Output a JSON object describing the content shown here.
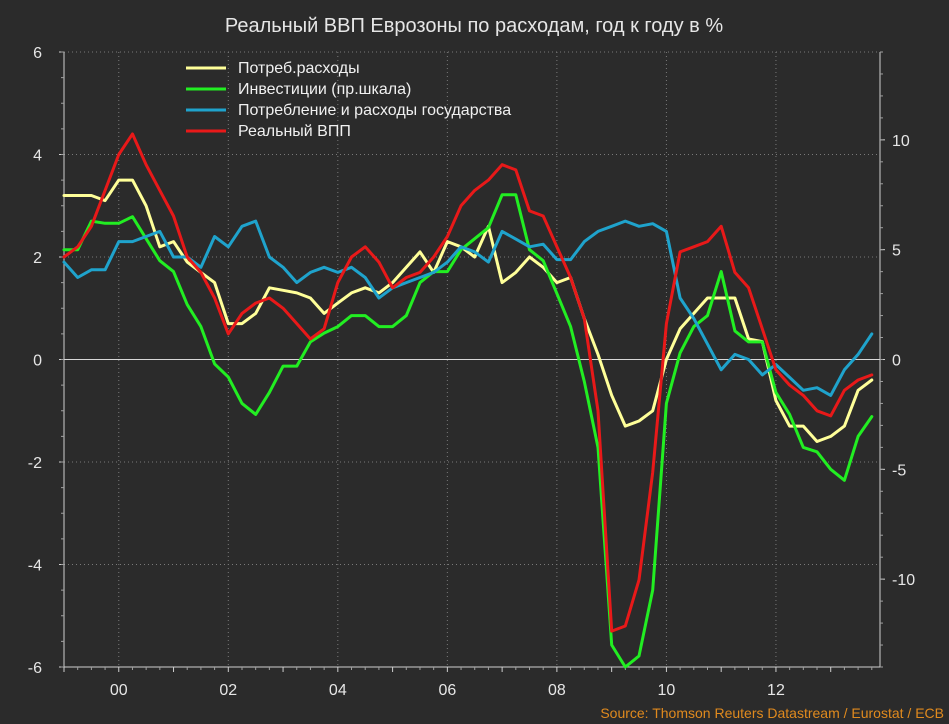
{
  "chart_data": {
    "type": "line",
    "title": "Реальный ВВП Еврозоны по расходам, год к году в %",
    "source": "Source: Thomson Reuters Datastream / Eurostat / ECB",
    "xlabel": "",
    "ylabel": "",
    "x_tick_labels": [
      "00",
      "02",
      "04",
      "06",
      "08",
      "10",
      "12"
    ],
    "x_tick_values": [
      2000,
      2002,
      2004,
      2006,
      2008,
      2010,
      2012
    ],
    "xlim": [
      1999,
      2013.9
    ],
    "ylim_left": [
      -6,
      6
    ],
    "ylim_right": [
      -14,
      14
    ],
    "y_left_ticks": [
      -6,
      -4,
      -2,
      0,
      2,
      4,
      6
    ],
    "y_left_tick_labels": [
      "-6",
      "-4",
      "-2",
      "0",
      "2",
      "4",
      "6"
    ],
    "y_right_ticks": [
      -10,
      -5,
      0,
      5,
      10
    ],
    "y_right_tick_labels": [
      "-10",
      "-5",
      "0",
      "5",
      "10"
    ],
    "legend_position": "top-left",
    "grid": true,
    "zero_line": true,
    "series": [
      {
        "name": "Потреб.расходы",
        "color": "#ffff99",
        "axis": "left",
        "points": [
          [
            1999.0,
            3.2
          ],
          [
            1999.25,
            3.2
          ],
          [
            1999.5,
            3.2
          ],
          [
            1999.75,
            3.1
          ],
          [
            2000.0,
            3.5
          ],
          [
            2000.25,
            3.5
          ],
          [
            2000.5,
            3.0
          ],
          [
            2000.75,
            2.2
          ],
          [
            2001.0,
            2.3
          ],
          [
            2001.25,
            1.9
          ],
          [
            2001.5,
            1.7
          ],
          [
            2001.75,
            1.5
          ],
          [
            2002.0,
            0.7
          ],
          [
            2002.25,
            0.7
          ],
          [
            2002.5,
            0.9
          ],
          [
            2002.75,
            1.4
          ],
          [
            2003.0,
            1.35
          ],
          [
            2003.25,
            1.3
          ],
          [
            2003.5,
            1.2
          ],
          [
            2003.75,
            0.9
          ],
          [
            2004.0,
            1.1
          ],
          [
            2004.25,
            1.3
          ],
          [
            2004.5,
            1.4
          ],
          [
            2004.75,
            1.3
          ],
          [
            2005.0,
            1.5
          ],
          [
            2005.25,
            1.8
          ],
          [
            2005.5,
            2.1
          ],
          [
            2005.75,
            1.7
          ],
          [
            2006.0,
            2.3
          ],
          [
            2006.25,
            2.2
          ],
          [
            2006.5,
            2.0
          ],
          [
            2006.75,
            2.6
          ],
          [
            2007.0,
            1.5
          ],
          [
            2007.25,
            1.7
          ],
          [
            2007.5,
            2.0
          ],
          [
            2007.75,
            1.8
          ],
          [
            2008.0,
            1.5
          ],
          [
            2008.25,
            1.6
          ],
          [
            2008.5,
            0.8
          ],
          [
            2008.75,
            0.1
          ],
          [
            2009.0,
            -0.7
          ],
          [
            2009.25,
            -1.3
          ],
          [
            2009.5,
            -1.2
          ],
          [
            2009.75,
            -1.0
          ],
          [
            2010.0,
            0.0
          ],
          [
            2010.25,
            0.6
          ],
          [
            2010.5,
            0.9
          ],
          [
            2010.75,
            1.2
          ],
          [
            2011.0,
            1.2
          ],
          [
            2011.25,
            1.2
          ],
          [
            2011.5,
            0.4
          ],
          [
            2011.75,
            0.35
          ],
          [
            2012.0,
            -0.8
          ],
          [
            2012.25,
            -1.3
          ],
          [
            2012.5,
            -1.3
          ],
          [
            2012.75,
            -1.6
          ],
          [
            2013.0,
            -1.5
          ],
          [
            2013.25,
            -1.3
          ],
          [
            2013.5,
            -0.6
          ],
          [
            2013.75,
            -0.4
          ]
        ]
      },
      {
        "name": "Инвестиции (пр.шкала)",
        "color": "#22ee22",
        "axis": "right",
        "points": [
          [
            1999.0,
            5.0
          ],
          [
            1999.25,
            5.0
          ],
          [
            1999.5,
            6.3
          ],
          [
            1999.75,
            6.2
          ],
          [
            2000.0,
            6.2
          ],
          [
            2000.25,
            6.5
          ],
          [
            2000.5,
            5.5
          ],
          [
            2000.75,
            4.5
          ],
          [
            2001.0,
            4.0
          ],
          [
            2001.25,
            2.5
          ],
          [
            2001.5,
            1.5
          ],
          [
            2001.75,
            -0.2
          ],
          [
            2002.0,
            -0.8
          ],
          [
            2002.25,
            -2.0
          ],
          [
            2002.5,
            -2.5
          ],
          [
            2002.75,
            -1.5
          ],
          [
            2003.0,
            -0.3
          ],
          [
            2003.25,
            -0.3
          ],
          [
            2003.5,
            0.8
          ],
          [
            2003.75,
            1.2
          ],
          [
            2004.0,
            1.5
          ],
          [
            2004.25,
            2.0
          ],
          [
            2004.5,
            2.0
          ],
          [
            2004.75,
            1.5
          ],
          [
            2005.0,
            1.5
          ],
          [
            2005.25,
            2.0
          ],
          [
            2005.5,
            3.5
          ],
          [
            2005.75,
            4.0
          ],
          [
            2006.0,
            4.0
          ],
          [
            2006.25,
            5.0
          ],
          [
            2006.5,
            5.5
          ],
          [
            2006.75,
            6.0
          ],
          [
            2007.0,
            7.5
          ],
          [
            2007.25,
            7.5
          ],
          [
            2007.5,
            5.0
          ],
          [
            2007.75,
            4.5
          ],
          [
            2008.0,
            3.0
          ],
          [
            2008.25,
            1.5
          ],
          [
            2008.5,
            -1.0
          ],
          [
            2008.75,
            -4.0
          ],
          [
            2009.0,
            -13.0
          ],
          [
            2009.25,
            -14.0
          ],
          [
            2009.5,
            -13.5
          ],
          [
            2009.75,
            -10.5
          ],
          [
            2010.0,
            -2.0
          ],
          [
            2010.25,
            0.3
          ],
          [
            2010.5,
            1.5
          ],
          [
            2010.75,
            2.0
          ],
          [
            2011.0,
            4.0
          ],
          [
            2011.25,
            1.3
          ],
          [
            2011.5,
            0.8
          ],
          [
            2011.75,
            0.8
          ],
          [
            2012.0,
            -1.5
          ],
          [
            2012.25,
            -2.5
          ],
          [
            2012.5,
            -4.0
          ],
          [
            2012.75,
            -4.2
          ],
          [
            2013.0,
            -5.0
          ],
          [
            2013.25,
            -5.5
          ],
          [
            2013.5,
            -3.5
          ],
          [
            2013.75,
            -2.6
          ]
        ]
      },
      {
        "name": "Потребление и расходы государства",
        "color": "#1fa3cc",
        "axis": "left",
        "points": [
          [
            1999.0,
            1.9
          ],
          [
            1999.25,
            1.6
          ],
          [
            1999.5,
            1.75
          ],
          [
            1999.75,
            1.75
          ],
          [
            2000.0,
            2.3
          ],
          [
            2000.25,
            2.3
          ],
          [
            2000.5,
            2.4
          ],
          [
            2000.75,
            2.5
          ],
          [
            2001.0,
            2.0
          ],
          [
            2001.25,
            2.0
          ],
          [
            2001.5,
            1.8
          ],
          [
            2001.75,
            2.4
          ],
          [
            2002.0,
            2.2
          ],
          [
            2002.25,
            2.6
          ],
          [
            2002.5,
            2.7
          ],
          [
            2002.75,
            2.0
          ],
          [
            2003.0,
            1.8
          ],
          [
            2003.25,
            1.5
          ],
          [
            2003.5,
            1.7
          ],
          [
            2003.75,
            1.8
          ],
          [
            2004.0,
            1.7
          ],
          [
            2004.25,
            1.8
          ],
          [
            2004.5,
            1.6
          ],
          [
            2004.75,
            1.2
          ],
          [
            2005.0,
            1.4
          ],
          [
            2005.25,
            1.5
          ],
          [
            2005.5,
            1.6
          ],
          [
            2005.75,
            1.7
          ],
          [
            2006.0,
            1.9
          ],
          [
            2006.25,
            2.2
          ],
          [
            2006.5,
            2.1
          ],
          [
            2006.75,
            1.9
          ],
          [
            2007.0,
            2.5
          ],
          [
            2007.25,
            2.35
          ],
          [
            2007.5,
            2.2
          ],
          [
            2007.75,
            2.25
          ],
          [
            2008.0,
            1.95
          ],
          [
            2008.25,
            1.95
          ],
          [
            2008.5,
            2.3
          ],
          [
            2008.75,
            2.5
          ],
          [
            2009.0,
            2.6
          ],
          [
            2009.25,
            2.7
          ],
          [
            2009.5,
            2.6
          ],
          [
            2009.75,
            2.65
          ],
          [
            2010.0,
            2.5
          ],
          [
            2010.25,
            1.2
          ],
          [
            2010.5,
            0.8
          ],
          [
            2010.75,
            0.3
          ],
          [
            2011.0,
            -0.2
          ],
          [
            2011.25,
            0.1
          ],
          [
            2011.5,
            0.0
          ],
          [
            2011.75,
            -0.3
          ],
          [
            2012.0,
            -0.1
          ],
          [
            2012.25,
            -0.35
          ],
          [
            2012.5,
            -0.6
          ],
          [
            2012.75,
            -0.55
          ],
          [
            2013.0,
            -0.7
          ],
          [
            2013.25,
            -0.2
          ],
          [
            2013.5,
            0.1
          ],
          [
            2013.75,
            0.5
          ]
        ]
      },
      {
        "name": "Реальный ВПП",
        "color": "#e81919",
        "axis": "left",
        "points": [
          [
            1999.0,
            2.0
          ],
          [
            1999.25,
            2.2
          ],
          [
            1999.5,
            2.6
          ],
          [
            1999.75,
            3.3
          ],
          [
            2000.0,
            4.0
          ],
          [
            2000.25,
            4.4
          ],
          [
            2000.5,
            3.8
          ],
          [
            2000.75,
            3.3
          ],
          [
            2001.0,
            2.8
          ],
          [
            2001.25,
            2.0
          ],
          [
            2001.5,
            1.7
          ],
          [
            2001.75,
            1.2
          ],
          [
            2002.0,
            0.5
          ],
          [
            2002.25,
            0.9
          ],
          [
            2002.5,
            1.1
          ],
          [
            2002.75,
            1.2
          ],
          [
            2003.0,
            1.0
          ],
          [
            2003.25,
            0.7
          ],
          [
            2003.5,
            0.4
          ],
          [
            2003.75,
            0.6
          ],
          [
            2004.0,
            1.5
          ],
          [
            2004.25,
            2.0
          ],
          [
            2004.5,
            2.2
          ],
          [
            2004.75,
            1.9
          ],
          [
            2005.0,
            1.4
          ],
          [
            2005.25,
            1.6
          ],
          [
            2005.5,
            1.7
          ],
          [
            2005.75,
            2.0
          ],
          [
            2006.0,
            2.4
          ],
          [
            2006.25,
            3.0
          ],
          [
            2006.5,
            3.3
          ],
          [
            2006.75,
            3.5
          ],
          [
            2007.0,
            3.8
          ],
          [
            2007.25,
            3.7
          ],
          [
            2007.5,
            2.9
          ],
          [
            2007.75,
            2.8
          ],
          [
            2008.0,
            2.2
          ],
          [
            2008.25,
            1.6
          ],
          [
            2008.5,
            0.8
          ],
          [
            2008.75,
            -1.0
          ],
          [
            2009.0,
            -5.3
          ],
          [
            2009.25,
            -5.2
          ],
          [
            2009.5,
            -4.3
          ],
          [
            2009.75,
            -2.2
          ],
          [
            2010.0,
            0.7
          ],
          [
            2010.25,
            2.1
          ],
          [
            2010.5,
            2.2
          ],
          [
            2010.75,
            2.3
          ],
          [
            2011.0,
            2.6
          ],
          [
            2011.25,
            1.7
          ],
          [
            2011.5,
            1.4
          ],
          [
            2011.75,
            0.6
          ],
          [
            2012.0,
            -0.2
          ],
          [
            2012.25,
            -0.5
          ],
          [
            2012.5,
            -0.7
          ],
          [
            2012.75,
            -1.0
          ],
          [
            2013.0,
            -1.1
          ],
          [
            2013.25,
            -0.6
          ],
          [
            2013.5,
            -0.4
          ],
          [
            2013.75,
            -0.3
          ]
        ]
      }
    ]
  }
}
